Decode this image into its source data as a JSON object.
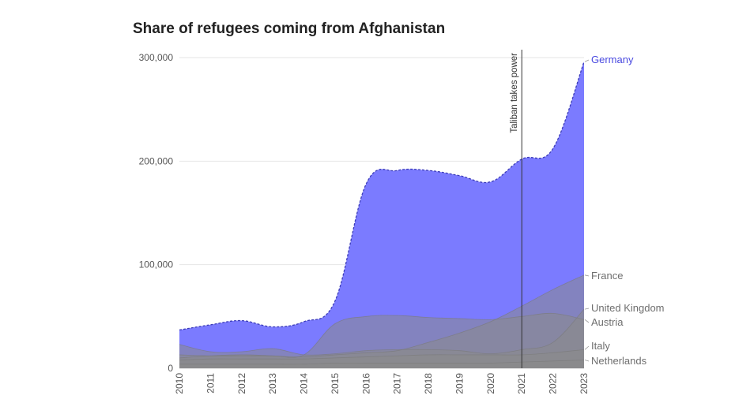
{
  "chart_data": {
    "type": "area",
    "title": "Share of refugees coming from Afghanistan",
    "x": [
      "2010",
      "2011",
      "2012",
      "2013",
      "2014",
      "2015",
      "2016",
      "2017",
      "2018",
      "2019",
      "2020",
      "2021",
      "2022",
      "2023"
    ],
    "ylim": [
      0,
      300000
    ],
    "y_ticks": [
      "0",
      "100,000",
      "200,000",
      "300,000"
    ],
    "series": [
      {
        "name": "Germany",
        "color": "#7b7bff",
        "values": [
          37000,
          42000,
          46000,
          40000,
          45000,
          65000,
          178000,
          191000,
          191000,
          186000,
          180000,
          202000,
          212000,
          296000
        ]
      },
      {
        "name": "France",
        "color": "#8a8a8a",
        "values": [
          10000,
          12000,
          13000,
          12000,
          11000,
          13000,
          15000,
          17000,
          25000,
          34000,
          45000,
          60000,
          76000,
          90000
        ]
      },
      {
        "name": "United Kingdom",
        "color": "#8a8a8a",
        "values": [
          23000,
          16000,
          16000,
          19000,
          13000,
          14000,
          17000,
          18000,
          18000,
          17000,
          14000,
          18000,
          25000,
          57000
        ]
      },
      {
        "name": "Austria",
        "color": "#8a8a8a",
        "values": [
          13000,
          12000,
          12000,
          12000,
          13000,
          43000,
          50000,
          51000,
          49000,
          48000,
          47000,
          50000,
          53000,
          47000
        ]
      },
      {
        "name": "Italy",
        "color": "#8a8a8a",
        "values": [
          8000,
          9000,
          9000,
          9000,
          9000,
          10000,
          11000,
          12000,
          13000,
          13000,
          13000,
          13000,
          15000,
          18000
        ]
      },
      {
        "name": "Netherlands",
        "color": "#8a8a8a",
        "values": [
          4000,
          4000,
          4000,
          4000,
          4000,
          5000,
          5000,
          5000,
          5000,
          5000,
          5000,
          6000,
          7000,
          8000
        ]
      }
    ],
    "annotation": {
      "label": "Taliban takes power",
      "x": "2021"
    },
    "grid": true,
    "legend": "direct labels at line ends"
  }
}
